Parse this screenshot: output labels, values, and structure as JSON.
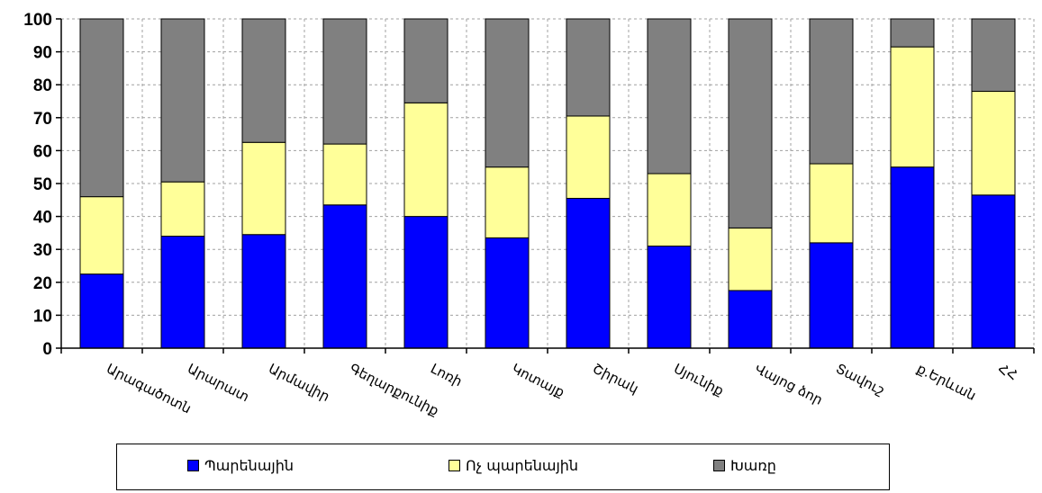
{
  "chart_data": {
    "type": "bar",
    "stacked": true,
    "categories": [
      "Արագածոտն",
      "Արարատ",
      "Արմավիր",
      "Գեղարքունիք",
      "Լոռի",
      "Կոտայք",
      "Շիրակ",
      "Սյունիք",
      "Վայոց ձոր",
      "Տավուշ",
      "ք.Երևան",
      "ՀՀ"
    ],
    "series": [
      {
        "name": "Պարենային",
        "color": "#0000ff",
        "values": [
          22.5,
          34,
          34.5,
          43.5,
          40,
          33.5,
          45.5,
          31,
          17.5,
          32,
          55,
          46.5
        ]
      },
      {
        "name": "Ոչ պարենային",
        "color": "#ffff99",
        "values": [
          23.5,
          16.5,
          28,
          18.5,
          34.5,
          21.5,
          25,
          22,
          19,
          24,
          36.5,
          31.5
        ]
      },
      {
        "name": "Խառը",
        "color": "#808080",
        "values": [
          54,
          49.5,
          37.5,
          38,
          25.5,
          45,
          29.5,
          47,
          63.5,
          44,
          8.5,
          22
        ]
      }
    ],
    "ylim": [
      0,
      100
    ],
    "yticks": [
      "0",
      "10",
      "20",
      "30",
      "40",
      "50",
      "60",
      "70",
      "80",
      "90",
      "100"
    ],
    "grid": true,
    "legend_position": "bottom"
  }
}
